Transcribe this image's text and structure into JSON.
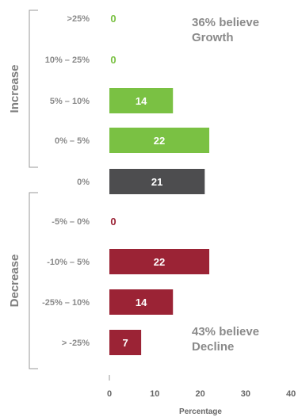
{
  "chart_data": {
    "type": "bar",
    "orientation": "horizontal",
    "categories": [
      ">25%",
      "10% – 25%",
      "5% – 10%",
      "0% – 5%",
      "0%",
      "-5% – 0%",
      "-10% – 5%",
      "-25% – 10%",
      "> -25%"
    ],
    "values": [
      0,
      0,
      14,
      22,
      21,
      0,
      22,
      14,
      7
    ],
    "groups": [
      {
        "label": "Increase",
        "categories": [
          ">25%",
          "10% – 25%",
          "5% – 10%",
          "0% – 5%"
        ]
      },
      {
        "label": "Decrease",
        "categories": [
          "-5% – 0%",
          "-10% – 5%",
          "-25% – 10%",
          "> -25%"
        ]
      }
    ],
    "xlabel": "Percentage",
    "xlim": [
      0,
      40
    ],
    "xticks": [
      0,
      10,
      20,
      30,
      40
    ],
    "annotations": [
      {
        "line1": "36% believe",
        "line2": "Growth"
      },
      {
        "line1": "43% believe",
        "line2": "Decline"
      }
    ],
    "grid": false
  },
  "colors": {
    "increase": "#7ac143",
    "neutral": "#4d4d4f",
    "decrease": "#9b2335",
    "bar_label": "#ffffff",
    "zero_increase": "#7ac143",
    "zero_decrease": "#9b2335"
  }
}
